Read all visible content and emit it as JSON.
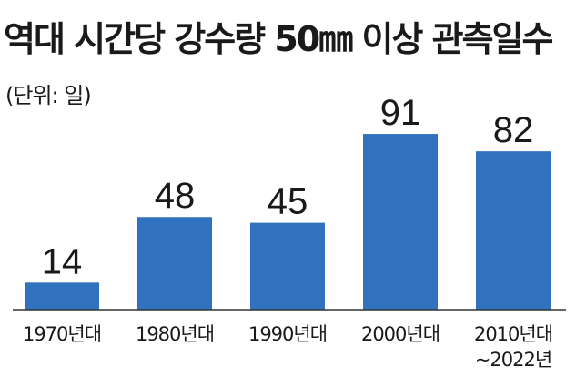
{
  "chart_data": {
    "type": "bar",
    "title": "역대 시간당 강수량 50㎜ 이상 관측일수",
    "unit_label": "(단위: 일)",
    "categories": [
      [
        "1970년대"
      ],
      [
        "1980년대"
      ],
      [
        "1990년대"
      ],
      [
        "2000년대"
      ],
      [
        "2010년대",
        "~2022년"
      ]
    ],
    "values": [
      14,
      48,
      45,
      91,
      82
    ],
    "data_labels": [
      "14",
      "48",
      "45",
      "91",
      "82"
    ],
    "ylim": [
      0,
      100
    ],
    "grid": false,
    "bar_color": "#3072bd"
  }
}
